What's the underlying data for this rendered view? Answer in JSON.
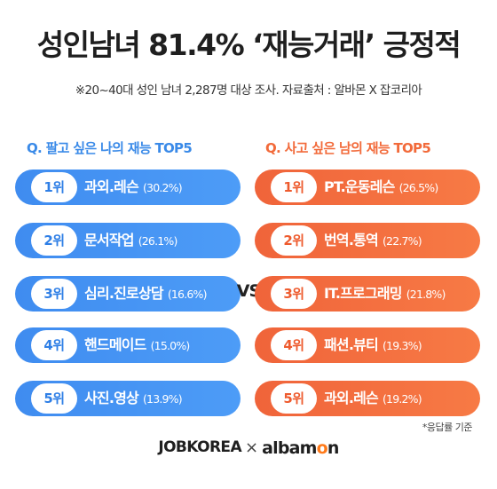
{
  "title": "성인남녀 81.4% ‘재능거래’ 긍정적",
  "subtitle": "※20~40대 성인 남녀 2,287명 대상 조사. 자료출처 : 알바몬 X 잡코리아",
  "vs_label": "VS",
  "note": "*응답률 기준",
  "colors": {
    "left_accent": "#3a8ae8",
    "right_accent": "#f26a3a",
    "footer_o": "#ff7a1a"
  },
  "footer": {
    "brand_left": "JOBKOREA",
    "cross": "×",
    "brand_right_pre": "albam",
    "brand_right_o": "o",
    "brand_right_post": "n"
  },
  "chart_data": [
    {
      "type": "table",
      "title": "Q. 팔고 싶은 나의 재능 TOP5",
      "ranks": [
        "1위",
        "2위",
        "3위",
        "4위",
        "5위"
      ],
      "categories": [
        "과외.레슨",
        "문서작업",
        "심리.진로상담",
        "핸드메이드",
        "사진.영상"
      ],
      "value_labels": [
        "(30.2%)",
        "(26.1%)",
        "(16.6%)",
        "(15.0%)",
        "(13.9%)"
      ],
      "values": [
        30.2,
        26.1,
        16.6,
        15.0,
        13.9
      ]
    },
    {
      "type": "table",
      "title": "Q. 사고 싶은 남의 재능 TOP5",
      "ranks": [
        "1위",
        "2위",
        "3위",
        "4위",
        "5위"
      ],
      "categories": [
        "PT.운동레슨",
        "번역.통역",
        "IT.프로그래밍",
        "패션.뷰티",
        "과외.레슨"
      ],
      "value_labels": [
        "(26.5%)",
        "(22.7%)",
        "(21.8%)",
        "(19.3%)",
        "(19.2%)"
      ],
      "values": [
        26.5,
        22.7,
        21.8,
        19.3,
        19.2
      ]
    }
  ]
}
